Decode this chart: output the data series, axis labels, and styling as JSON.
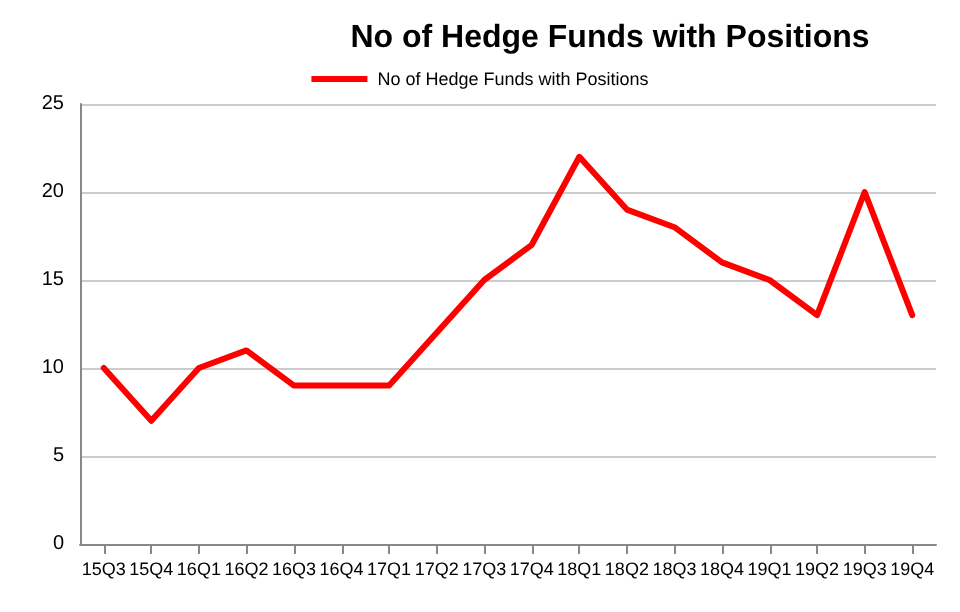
{
  "chart_data": {
    "type": "line",
    "title": "No of Hedge Funds with Positions",
    "categories": [
      "15Q3",
      "15Q4",
      "16Q1",
      "16Q2",
      "16Q3",
      "16Q4",
      "17Q1",
      "17Q2",
      "17Q3",
      "17Q4",
      "18Q1",
      "18Q2",
      "18Q3",
      "18Q4",
      "19Q1",
      "19Q2",
      "19Q3",
      "19Q4"
    ],
    "series": [
      {
        "name": "No of Hedge Funds with Positions",
        "color": "#ff0000",
        "values": [
          10,
          7,
          10,
          11,
          9,
          9,
          9,
          12,
          15,
          17,
          22,
          19,
          18,
          16,
          15,
          13,
          20,
          13
        ]
      }
    ],
    "ylim": [
      0,
      25
    ],
    "yticks": [
      0,
      5,
      10,
      15,
      20,
      25
    ],
    "grid": "y",
    "legend": "top",
    "marker": "none",
    "line_style": "solid"
  }
}
